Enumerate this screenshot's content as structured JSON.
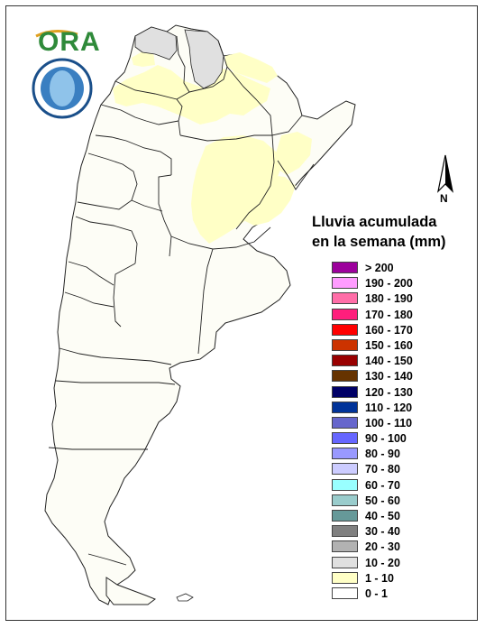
{
  "logo": {
    "text": "ORA"
  },
  "north_arrow": {
    "label": "N"
  },
  "legend": {
    "title_line1": "Lluvia acumulada",
    "title_line2": "en la semana (mm)",
    "items": [
      {
        "label": "> 200",
        "color": "#9c009c"
      },
      {
        "label": "190 - 200",
        "color": "#ff9cff"
      },
      {
        "label": "180 - 190",
        "color": "#ff6ea8"
      },
      {
        "label": "170 - 180",
        "color": "#ff1e7c"
      },
      {
        "label": "160 - 170",
        "color": "#ff0000"
      },
      {
        "label": "150 - 160",
        "color": "#cc3300"
      },
      {
        "label": "140 - 150",
        "color": "#990000"
      },
      {
        "label": "130 - 140",
        "color": "#663300"
      },
      {
        "label": "120 - 130",
        "color": "#000066"
      },
      {
        "label": "110 - 120",
        "color": "#003399"
      },
      {
        "label": "100 - 110",
        "color": "#6666cc"
      },
      {
        "label": "90 - 100",
        "color": "#6666ff"
      },
      {
        "label": "80 - 90",
        "color": "#9999ff"
      },
      {
        "label": "70 - 80",
        "color": "#ccccff"
      },
      {
        "label": "60 - 70",
        "color": "#99ffff"
      },
      {
        "label": "50 - 60",
        "color": "#99cccc"
      },
      {
        "label": "40 - 50",
        "color": "#669999"
      },
      {
        "label": "30 - 40",
        "color": "#808080"
      },
      {
        "label": "20 - 30",
        "color": "#b2b2b2"
      },
      {
        "label": "10 - 20",
        "color": "#e0e0e0"
      },
      {
        "label": "1 - 10",
        "color": "#ffffc6"
      },
      {
        "label": "0 - 1",
        "color": "#ffffff"
      }
    ]
  },
  "map_colors": {
    "background": "#fdfdf6",
    "rain_light": "#ffffc6",
    "rain_10_20": "#e0e0e0",
    "border": "#222222"
  }
}
